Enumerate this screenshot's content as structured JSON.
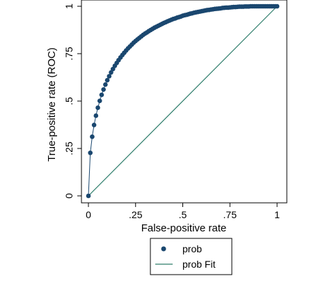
{
  "chart_data": {
    "type": "scatter",
    "xlabel": "False-positive rate",
    "ylabel": "True-positive rate (ROC)",
    "xlim": [
      0,
      1
    ],
    "ylim": [
      0,
      1
    ],
    "x_ticks": [
      {
        "value": 0,
        "label": "0"
      },
      {
        "value": 0.25,
        "label": ".25"
      },
      {
        "value": 0.5,
        "label": ".5"
      },
      {
        "value": 0.75,
        "label": ".75"
      },
      {
        "value": 1,
        "label": "1"
      }
    ],
    "y_ticks": [
      {
        "value": 0,
        "label": "0"
      },
      {
        "value": 0.25,
        "label": ".25"
      },
      {
        "value": 0.5,
        "label": ".5"
      },
      {
        "value": 0.75,
        "label": ".75"
      },
      {
        "value": 1,
        "label": "1"
      }
    ],
    "grid": false,
    "legend_position": "bottom",
    "series": [
      {
        "name": "prob",
        "kind": "points",
        "color": "#1a476f",
        "x": [
          0,
          0.01,
          0.02,
          0.03,
          0.04,
          0.05,
          0.06,
          0.07,
          0.08,
          0.09,
          0.1,
          0.11,
          0.12,
          0.13,
          0.14,
          0.15,
          0.16,
          0.17,
          0.18,
          0.19,
          0.2,
          0.21,
          0.22,
          0.23,
          0.24,
          0.25,
          0.26,
          0.27,
          0.28,
          0.29,
          0.3,
          0.31,
          0.32,
          0.33,
          0.34,
          0.35,
          0.36,
          0.37,
          0.38,
          0.39,
          0.4,
          0.41,
          0.42,
          0.43,
          0.44,
          0.45,
          0.46,
          0.47,
          0.48,
          0.49,
          0.5,
          0.51,
          0.52,
          0.53,
          0.54,
          0.55,
          0.56,
          0.57,
          0.58,
          0.59,
          0.6,
          0.61,
          0.62,
          0.63,
          0.64,
          0.65,
          0.66,
          0.67,
          0.68,
          0.69,
          0.7,
          0.71,
          0.72,
          0.73,
          0.74,
          0.75,
          0.76,
          0.77,
          0.78,
          0.79,
          0.8,
          0.81,
          0.82,
          0.83,
          0.84,
          0.85,
          0.86,
          0.87,
          0.88,
          0.89,
          0.9,
          0.91,
          0.92,
          0.93,
          0.94,
          0.95,
          0.96,
          0.97,
          0.98,
          0.99,
          1.0
        ],
        "y": [
          0,
          0.227,
          0.312,
          0.374,
          0.423,
          0.465,
          0.501,
          0.533,
          0.561,
          0.587,
          0.61,
          0.631,
          0.651,
          0.669,
          0.686,
          0.701,
          0.716,
          0.73,
          0.743,
          0.755,
          0.767,
          0.778,
          0.788,
          0.798,
          0.808,
          0.817,
          0.825,
          0.833,
          0.841,
          0.849,
          0.856,
          0.862,
          0.869,
          0.875,
          0.881,
          0.887,
          0.892,
          0.897,
          0.902,
          0.907,
          0.912,
          0.916,
          0.921,
          0.925,
          0.929,
          0.933,
          0.936,
          0.94,
          0.943,
          0.946,
          0.95,
          0.953,
          0.955,
          0.958,
          0.961,
          0.963,
          0.966,
          0.968,
          0.97,
          0.972,
          0.974,
          0.976,
          0.978,
          0.98,
          0.981,
          0.983,
          0.984,
          0.986,
          0.987,
          0.988,
          0.989,
          0.991,
          0.992,
          0.993,
          0.993,
          0.994,
          0.995,
          0.996,
          0.996,
          0.997,
          0.998,
          0.998,
          0.998,
          0.999,
          0.999,
          0.999,
          1.0,
          1.0,
          1.0,
          1.0,
          1.0,
          1.0,
          1.0,
          1.0,
          1.0,
          1.0,
          1.0,
          1.0,
          1.0,
          1.0,
          1.0
        ]
      },
      {
        "name": "prob Fit",
        "kind": "line",
        "color": "#2e7d6b",
        "x": [
          0,
          1
        ],
        "y": [
          0,
          1
        ]
      }
    ]
  }
}
